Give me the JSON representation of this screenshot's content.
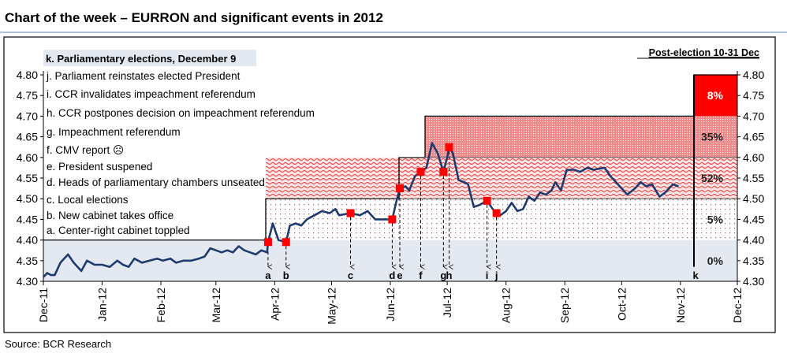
{
  "chart_data": {
    "type": "line",
    "title": "Chart of the week – EURRON and significant events in 2012",
    "source": "Source: BCR Research",
    "ylim": [
      4.3,
      4.8
    ],
    "yticks": [
      "4.30",
      "4.35",
      "4.40",
      "4.45",
      "4.50",
      "4.55",
      "4.60",
      "4.65",
      "4.70",
      "4.75",
      "4.80"
    ],
    "x_unit": "days since 1 Dec 2011",
    "xlim": [
      0,
      366
    ],
    "xticks": [
      {
        "label": "Dec-11",
        "d": 0
      },
      {
        "label": "Jan-12",
        "d": 31
      },
      {
        "label": "Feb-12",
        "d": 62
      },
      {
        "label": "Mar-12",
        "d": 91
      },
      {
        "label": "Apr-12",
        "d": 122
      },
      {
        "label": "May-12",
        "d": 152
      },
      {
        "label": "Jun-12",
        "d": 183
      },
      {
        "label": "Jul-12",
        "d": 213
      },
      {
        "label": "Aug-12",
        "d": 244
      },
      {
        "label": "Sep-12",
        "d": 275
      },
      {
        "label": "Oct-12",
        "d": 305
      },
      {
        "label": "Nov-12",
        "d": 336
      },
      {
        "label": "Dec-12",
        "d": 366
      }
    ],
    "series": [
      {
        "name": "EURRON",
        "color": "#1f3a6e",
        "points": [
          [
            0,
            4.31
          ],
          [
            2,
            4.32
          ],
          [
            4,
            4.315
          ],
          [
            6,
            4.315
          ],
          [
            9,
            4.345
          ],
          [
            13,
            4.365
          ],
          [
            16,
            4.345
          ],
          [
            20,
            4.325
          ],
          [
            23,
            4.35
          ],
          [
            27,
            4.34
          ],
          [
            31,
            4.34
          ],
          [
            35,
            4.335
          ],
          [
            39,
            4.35
          ],
          [
            42,
            4.34
          ],
          [
            45,
            4.335
          ],
          [
            48,
            4.355
          ],
          [
            52,
            4.345
          ],
          [
            56,
            4.35
          ],
          [
            60,
            4.355
          ],
          [
            63,
            4.35
          ],
          [
            67,
            4.355
          ],
          [
            70,
            4.345
          ],
          [
            74,
            4.35
          ],
          [
            78,
            4.35
          ],
          [
            82,
            4.355
          ],
          [
            85,
            4.36
          ],
          [
            88,
            4.38
          ],
          [
            91,
            4.375
          ],
          [
            94,
            4.37
          ],
          [
            97,
            4.375
          ],
          [
            100,
            4.37
          ],
          [
            103,
            4.385
          ],
          [
            106,
            4.375
          ],
          [
            109,
            4.37
          ],
          [
            112,
            4.365
          ],
          [
            115,
            4.375
          ],
          [
            118,
            4.37
          ],
          [
            118.5,
            4.395
          ],
          [
            121,
            4.44
          ],
          [
            124,
            4.4
          ],
          [
            128,
            4.395
          ],
          [
            130,
            4.435
          ],
          [
            133,
            4.44
          ],
          [
            136,
            4.435
          ],
          [
            139,
            4.45
          ],
          [
            143,
            4.46
          ],
          [
            147,
            4.47
          ],
          [
            151,
            4.465
          ],
          [
            154,
            4.475
          ],
          [
            156,
            4.46
          ],
          [
            162,
            4.465
          ],
          [
            167,
            4.46
          ],
          [
            171,
            4.47
          ],
          [
            175,
            4.45
          ],
          [
            178,
            4.45
          ],
          [
            182,
            4.45
          ],
          [
            184,
            4.45
          ],
          [
            186,
            4.49
          ],
          [
            188,
            4.525
          ],
          [
            191,
            4.53
          ],
          [
            193,
            4.52
          ],
          [
            196,
            4.555
          ],
          [
            199,
            4.565
          ],
          [
            202,
            4.575
          ],
          [
            205,
            4.635
          ],
          [
            208,
            4.61
          ],
          [
            211,
            4.565
          ],
          [
            213,
            4.6
          ],
          [
            214,
            4.625
          ],
          [
            216,
            4.61
          ],
          [
            219,
            4.545
          ],
          [
            222,
            4.54
          ],
          [
            224,
            4.535
          ],
          [
            227,
            4.48
          ],
          [
            230,
            4.485
          ],
          [
            234,
            4.495
          ],
          [
            237,
            4.475
          ],
          [
            239,
            4.465
          ],
          [
            241,
            4.46
          ],
          [
            244,
            4.47
          ],
          [
            247,
            4.49
          ],
          [
            250,
            4.47
          ],
          [
            253,
            4.475
          ],
          [
            256,
            4.505
          ],
          [
            259,
            4.495
          ],
          [
            262,
            4.515
          ],
          [
            265,
            4.51
          ],
          [
            268,
            4.52
          ],
          [
            270,
            4.54
          ],
          [
            273,
            4.52
          ],
          [
            276,
            4.57
          ],
          [
            280,
            4.57
          ],
          [
            283,
            4.565
          ],
          [
            287,
            4.575
          ],
          [
            290,
            4.57
          ],
          [
            296,
            4.575
          ],
          [
            299,
            4.555
          ],
          [
            302,
            4.54
          ],
          [
            305,
            4.525
          ],
          [
            308,
            4.51
          ],
          [
            312,
            4.525
          ],
          [
            315,
            4.54
          ],
          [
            318,
            4.53
          ],
          [
            321,
            4.535
          ],
          [
            325,
            4.505
          ],
          [
            328,
            4.515
          ],
          [
            332,
            4.535
          ],
          [
            335,
            4.53
          ]
        ]
      }
    ],
    "event_markers": [
      {
        "letter": "a",
        "d": 118.5,
        "y": 4.395
      },
      {
        "letter": "b",
        "d": 128,
        "y": 4.395
      },
      {
        "letter": "c",
        "d": 162,
        "y": 4.465
      },
      {
        "letter": "d",
        "d": 184,
        "y": 4.45
      },
      {
        "letter": "e",
        "d": 188,
        "y": 4.525
      },
      {
        "letter": "f",
        "d": 199,
        "y": 4.565
      },
      {
        "letter": "g",
        "d": 211,
        "y": 4.565
      },
      {
        "letter": "h",
        "d": 214,
        "y": 4.625
      },
      {
        "letter": "i",
        "d": 234,
        "y": 4.495
      },
      {
        "letter": "j",
        "d": 239,
        "y": 4.465
      },
      {
        "letter": "k",
        "d": 344,
        "y": null
      }
    ],
    "event_legend": [
      "k. Parliamentary elections, December 9",
      "j. Parliament reinstates elected President",
      "i. CCR invalidates impeachment referendum",
      "h. CCR postpones decision on impeachment referendum",
      "g. Impeachment referendum",
      "f. CMV report ☹",
      "e. President suspened",
      "d. Heads of parliamentary chambers unseated",
      "c. Local elections",
      "b. New cabinet takes office",
      "a. Center-right cabinet toppled"
    ],
    "post_election": {
      "title": "Post-election 10-31 Dec",
      "bands": [
        {
          "range": [
            4.7,
            4.8
          ],
          "label": "8%"
        },
        {
          "range": [
            4.6,
            4.7
          ],
          "label": "35%"
        },
        {
          "range": [
            4.5,
            4.6
          ],
          "label": "52%"
        },
        {
          "range": [
            4.4,
            4.5
          ],
          "label": "5%"
        },
        {
          "range": [
            4.3,
            4.4
          ],
          "label": "0%"
        }
      ]
    },
    "colors": {
      "marker": "#ff0000",
      "band_base": "#e4e9f1",
      "solid": "#ff0000"
    }
  }
}
